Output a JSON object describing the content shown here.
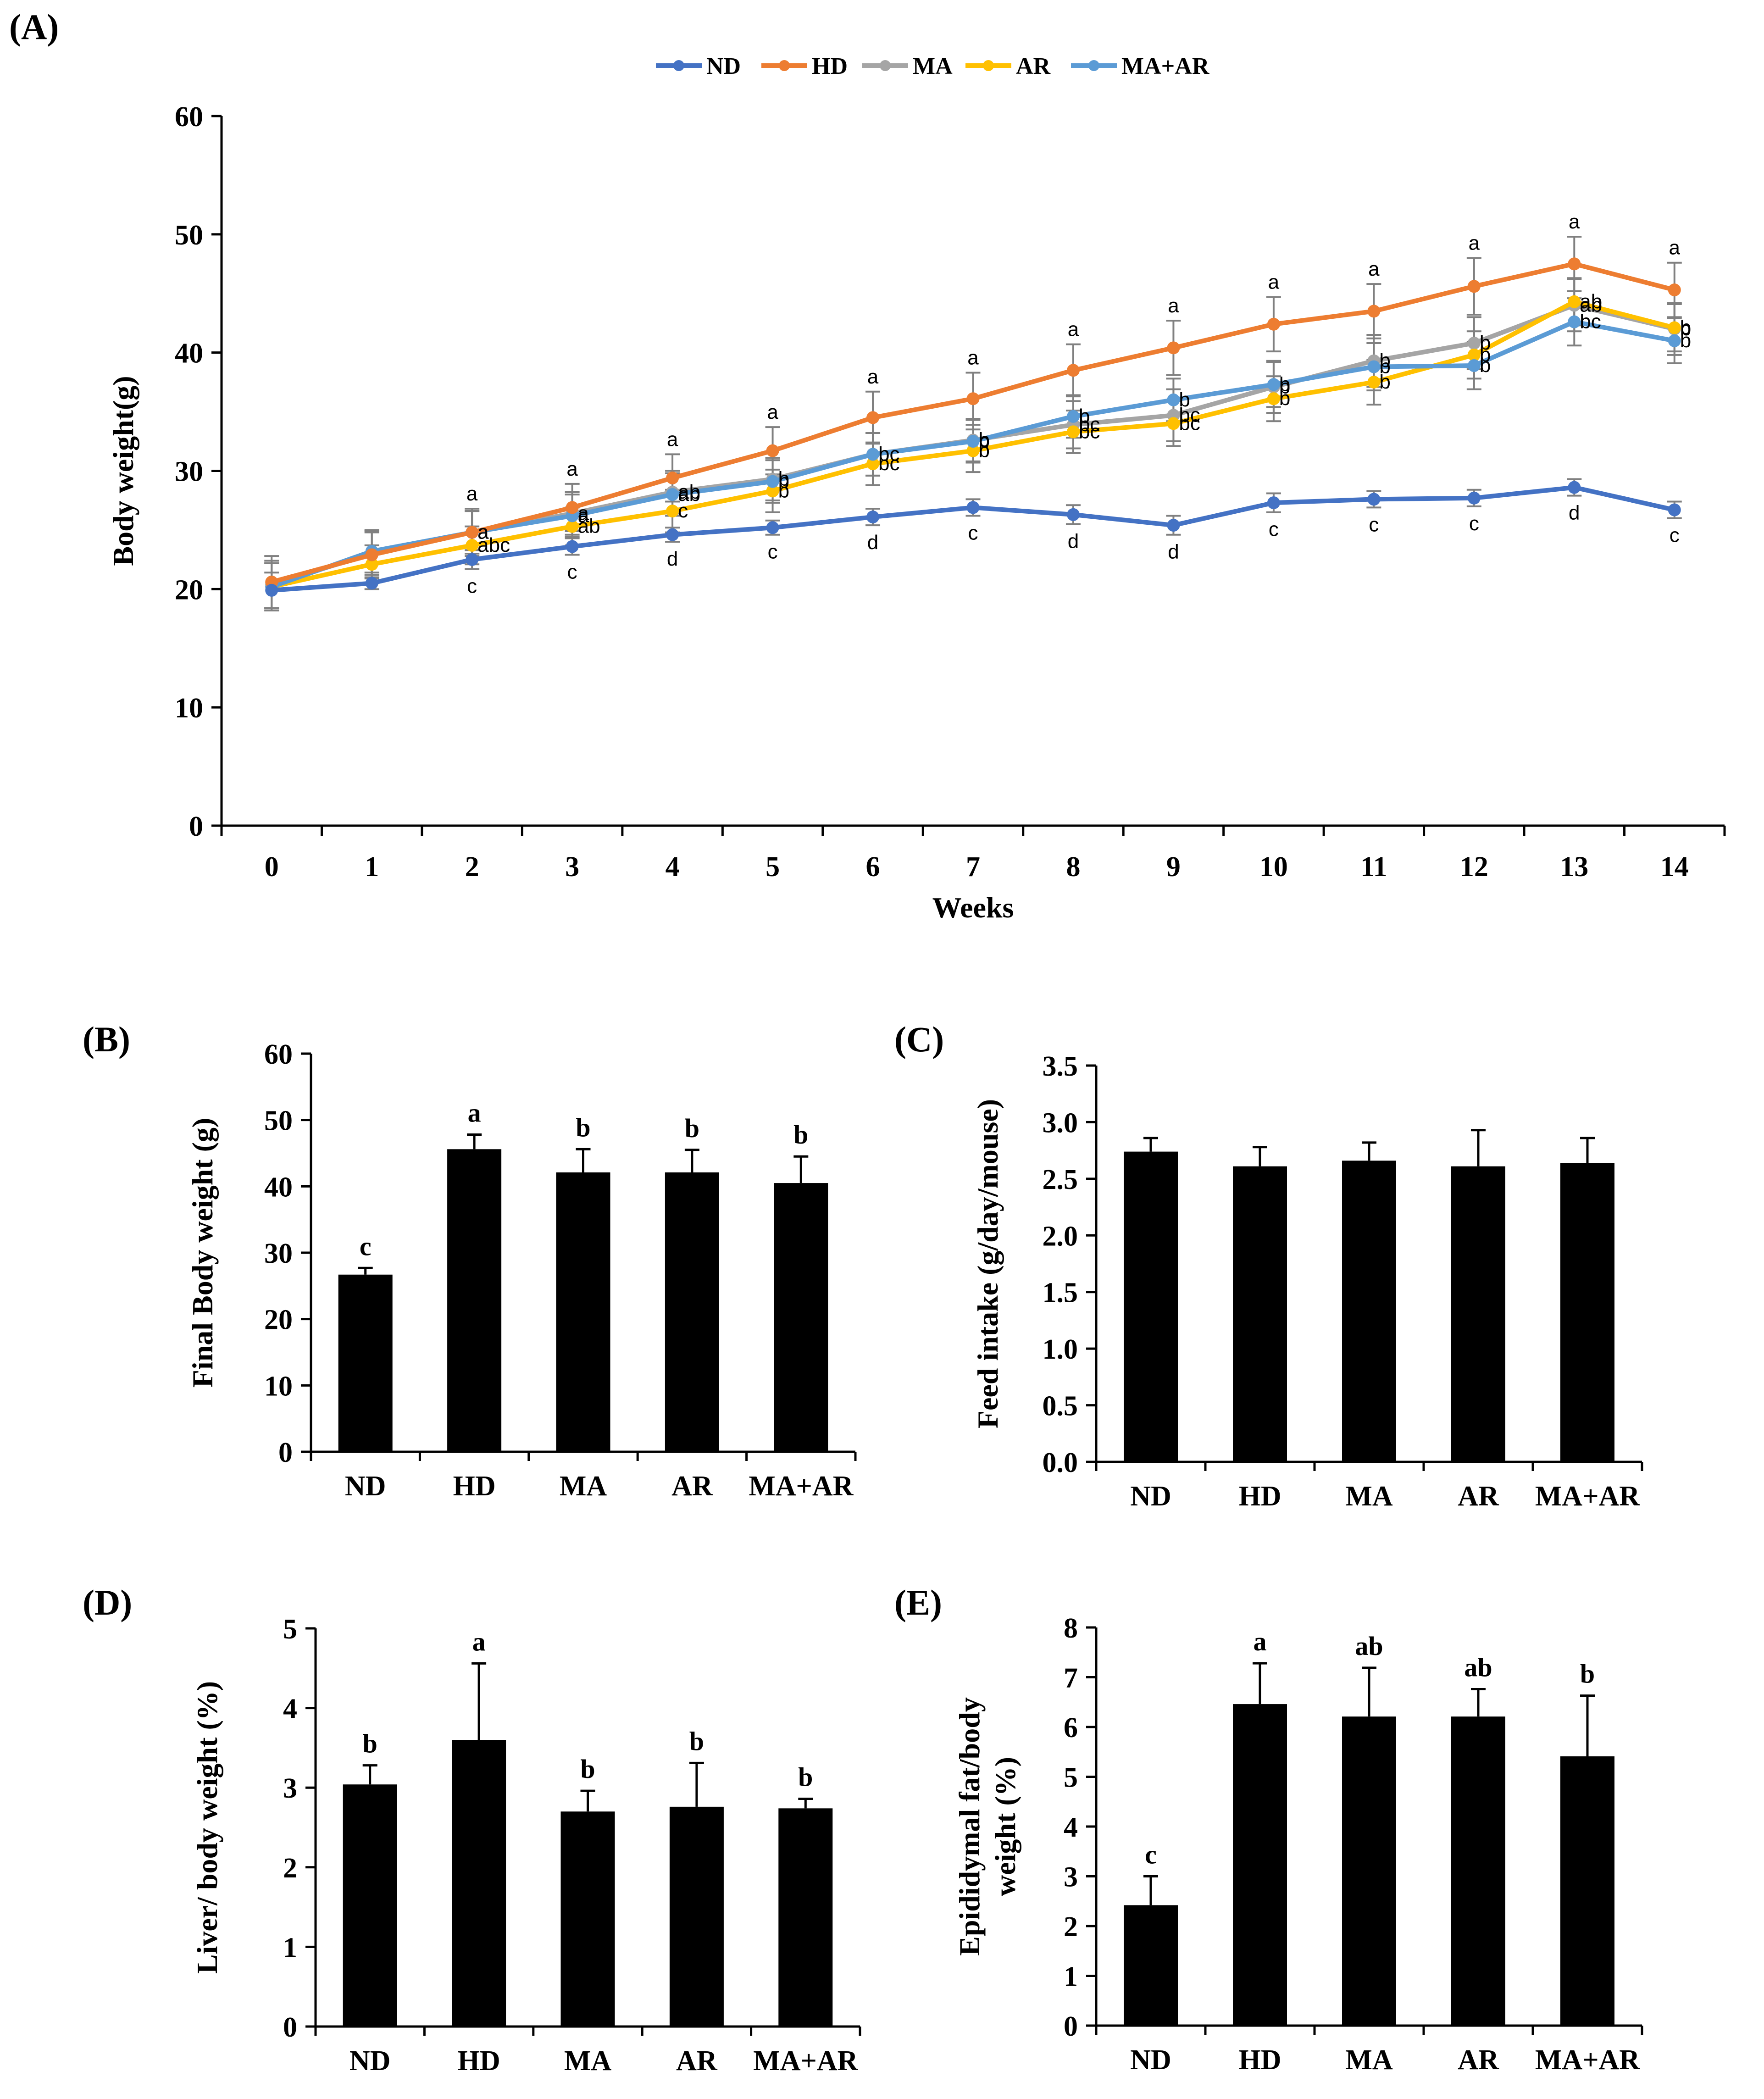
{
  "colors": {
    "ND": "#4472C4",
    "HD": "#ED7D31",
    "MA": "#A5A5A5",
    "AR": "#FFC000",
    "MA+AR": "#5B9BD5",
    "bar": "#000000",
    "axis": "#000000",
    "error": "#808080"
  },
  "chart_data": [
    {
      "panel": "(A)",
      "type": "line",
      "title": "",
      "xlabel": "Weeks",
      "ylabel": "Body weight(g)",
      "ylim": [
        0,
        60
      ],
      "yticks": [
        "0",
        "10",
        "20",
        "30",
        "40",
        "50",
        "60"
      ],
      "x": [
        "0",
        "1",
        "2",
        "3",
        "4",
        "5",
        "6",
        "7",
        "8",
        "9",
        "10",
        "11",
        "12",
        "13",
        "14"
      ],
      "legend_position": "top",
      "series": [
        {
          "name": "ND",
          "values": [
            19.9,
            20.5,
            22.5,
            23.6,
            24.6,
            25.2,
            26.1,
            26.9,
            26.3,
            25.4,
            27.3,
            27.6,
            27.7,
            28.6,
            26.7
          ],
          "err": [
            1.5,
            0.5,
            0.8,
            0.7,
            0.6,
            0.6,
            0.7,
            0.7,
            0.8,
            0.8,
            0.8,
            0.7,
            0.7,
            0.7,
            0.7
          ],
          "labels": [
            "",
            "",
            "c",
            "c",
            "d",
            "c",
            "d",
            "c",
            "d",
            "d",
            "c",
            "c",
            "c",
            "d",
            "c"
          ]
        },
        {
          "name": "HD",
          "values": [
            20.6,
            22.9,
            24.8,
            26.9,
            29.4,
            31.7,
            34.5,
            36.1,
            38.5,
            40.4,
            42.4,
            43.5,
            45.6,
            47.5,
            45.3
          ],
          "err": [
            2.2,
            2.0,
            2.0,
            2.0,
            2.0,
            2.0,
            2.2,
            2.2,
            2.2,
            2.3,
            2.3,
            2.3,
            2.4,
            2.3,
            2.3
          ],
          "labels": [
            "",
            "",
            "a",
            "a",
            "a",
            "a",
            "a",
            "a",
            "a",
            "a",
            "a",
            "a",
            "a",
            "a",
            "a"
          ]
        },
        {
          "name": "MA",
          "values": [
            20.4,
            23.0,
            24.8,
            26.4,
            28.2,
            29.3,
            31.4,
            32.6,
            33.9,
            34.7,
            37.1,
            39.3,
            40.8,
            44.0,
            42.0
          ],
          "err": [
            2.0,
            1.8,
            1.8,
            1.8,
            1.8,
            1.8,
            1.8,
            1.8,
            2.0,
            2.2,
            2.2,
            2.2,
            2.2,
            2.2,
            2.2
          ],
          "labels": [
            "",
            "",
            "a",
            "a",
            "ab",
            "b",
            "b",
            "b",
            "bc",
            "bc",
            "b",
            "b",
            "b",
            "ab",
            "b"
          ]
        },
        {
          "name": "AR",
          "values": [
            20.2,
            22.1,
            23.7,
            25.3,
            26.6,
            28.3,
            30.6,
            31.7,
            33.3,
            34.0,
            36.1,
            37.5,
            39.8,
            44.3,
            42.1
          ],
          "err": [
            2.0,
            1.6,
            1.6,
            1.6,
            1.8,
            1.8,
            1.8,
            1.8,
            1.8,
            1.9,
            1.9,
            1.9,
            2.0,
            2.0,
            2.0
          ],
          "labels": [
            "",
            "",
            "abc",
            "ab",
            "c",
            "b",
            "bc",
            "b",
            "bc",
            "bc",
            "b",
            "b",
            "b",
            "ab",
            "b"
          ]
        },
        {
          "name": "MA+AR",
          "values": [
            20.2,
            23.2,
            24.8,
            26.2,
            28.0,
            29.1,
            31.4,
            32.5,
            34.6,
            36.0,
            37.3,
            38.8,
            38.9,
            42.6,
            41.0
          ],
          "err": [
            2.0,
            1.8,
            1.8,
            1.8,
            1.8,
            1.8,
            1.8,
            1.8,
            1.8,
            1.8,
            1.9,
            2.0,
            2.0,
            2.0,
            1.9
          ],
          "labels": [
            "",
            "",
            "a",
            "a",
            "ab",
            "b",
            "bc",
            "b",
            "b",
            "b",
            "b",
            "b",
            "b",
            "bc",
            "b"
          ]
        }
      ]
    },
    {
      "panel": "(B)",
      "type": "bar",
      "title": "",
      "xlabel": "",
      "ylabel": "Final Body weight (g)",
      "ylim": [
        0,
        60
      ],
      "yticks": [
        "0",
        "10",
        "20",
        "30",
        "40",
        "50",
        "60"
      ],
      "categories": [
        "ND",
        "HD",
        "MA",
        "AR",
        "MA+AR"
      ],
      "values": [
        26.7,
        45.6,
        42.1,
        42.1,
        40.5
      ],
      "err": [
        1.0,
        2.2,
        3.5,
        3.4,
        4.0
      ],
      "labels": [
        "c",
        "a",
        "b",
        "b",
        "b"
      ]
    },
    {
      "panel": "(C)",
      "type": "bar",
      "title": "",
      "xlabel": "",
      "ylabel": "Feed intake (g/day/mouse)",
      "ylim": [
        0,
        3.5
      ],
      "yticks": [
        "0.0",
        "0.5",
        "1.0",
        "1.5",
        "2.0",
        "2.5",
        "3.0",
        "3.5"
      ],
      "categories": [
        "ND",
        "HD",
        "MA",
        "AR",
        "MA+AR"
      ],
      "values": [
        2.74,
        2.61,
        2.66,
        2.61,
        2.64
      ],
      "err": [
        0.12,
        0.17,
        0.16,
        0.32,
        0.22
      ],
      "labels": [
        "",
        "",
        "",
        "",
        ""
      ]
    },
    {
      "panel": "(D)",
      "type": "bar",
      "title": "",
      "xlabel": "",
      "ylabel": "Liver/ body weight (%)",
      "ylim": [
        0,
        5
      ],
      "yticks": [
        "0",
        "1",
        "2",
        "3",
        "4",
        "5"
      ],
      "categories": [
        "ND",
        "HD",
        "MA",
        "AR",
        "MA+AR"
      ],
      "values": [
        3.04,
        3.6,
        2.7,
        2.76,
        2.74
      ],
      "err": [
        0.24,
        0.96,
        0.26,
        0.55,
        0.12
      ],
      "labels": [
        "b",
        "a",
        "b",
        "b",
        "b"
      ]
    },
    {
      "panel": "(E)",
      "type": "bar",
      "title": "",
      "xlabel": "",
      "ylabel": "Epididymal fat/body weight (%)",
      "ylabel_lines": [
        "Epididymal fat/body",
        "weight (%)"
      ],
      "ylim": [
        0,
        8
      ],
      "yticks": [
        "0",
        "1",
        "2",
        "3",
        "4",
        "5",
        "6",
        "7",
        "8"
      ],
      "categories": [
        "ND",
        "HD",
        "MA",
        "AR",
        "MA+AR"
      ],
      "values": [
        2.42,
        6.46,
        6.21,
        6.21,
        5.41
      ],
      "err": [
        0.58,
        0.82,
        0.98,
        0.55,
        1.22
      ],
      "labels": [
        "c",
        "a",
        "ab",
        "ab",
        "b"
      ]
    }
  ]
}
